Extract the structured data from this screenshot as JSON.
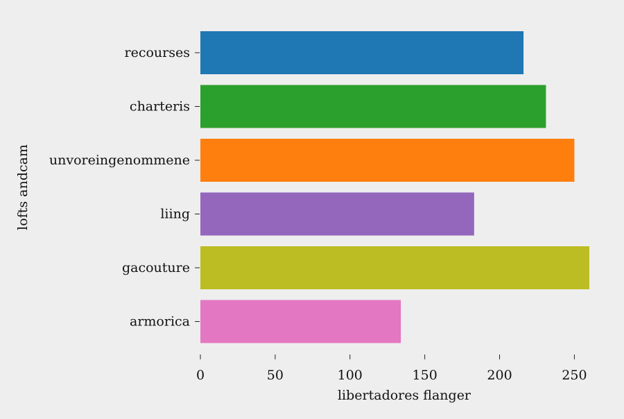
{
  "chart_data": {
    "type": "bar",
    "orientation": "horizontal",
    "title": "",
    "xlabel": "libertadores flanger",
    "ylabel": "lofts andcam",
    "categories": [
      "recourses",
      "charteris",
      "unvoreingenommene",
      "liing",
      "gacouture",
      "armorica"
    ],
    "values": [
      216,
      231,
      250,
      183,
      260,
      134
    ],
    "colors": [
      "#1f77b4",
      "#2ca02c",
      "#ff7f0e",
      "#9467bd",
      "#bcbd22",
      "#e377c2"
    ],
    "xlim": [
      0,
      260
    ],
    "xticks": [
      0,
      50,
      100,
      150,
      200,
      250
    ],
    "grid": false,
    "legend": "none",
    "background": "#eeeeee"
  }
}
